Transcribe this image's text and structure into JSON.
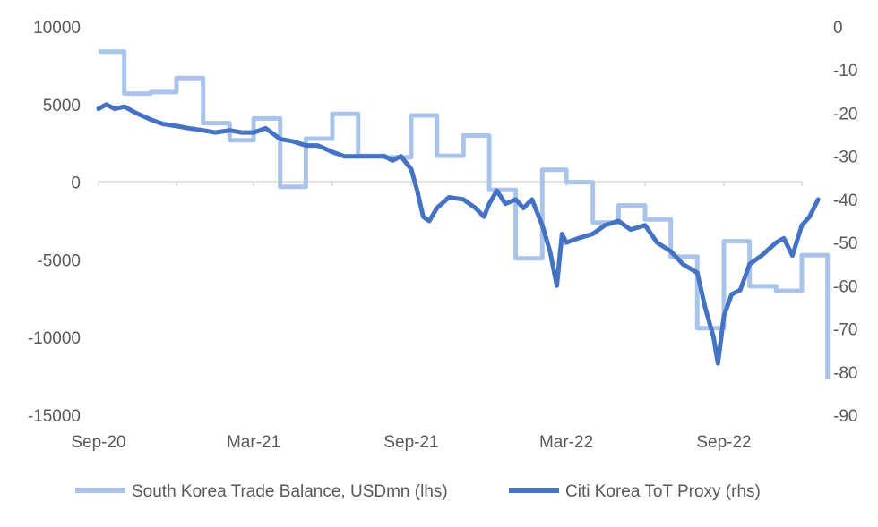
{
  "chart_data": {
    "type": "line",
    "title": "",
    "x_ticks": [
      "Sep-20",
      "Mar-21",
      "Sep-21",
      "Mar-22",
      "Sep-22"
    ],
    "x_range": [
      "2020-09",
      "2022-12"
    ],
    "y_left": {
      "ticks": [
        "10000",
        "5000",
        "0",
        "-5000",
        "-10000",
        "-15000"
      ],
      "range": [
        -15000,
        10000
      ]
    },
    "y_right": {
      "ticks": [
        "0",
        "-10",
        "-20",
        "-30",
        "-40",
        "-50",
        "-60",
        "-70",
        "-80",
        "-90"
      ],
      "range": [
        -90,
        0
      ]
    },
    "grid": false,
    "legend_position": "bottom",
    "colors": {
      "trade_balance": "#A9C4EB",
      "tot_proxy": "#4472C4",
      "axis": "#D9D9D9",
      "text": "#595959"
    },
    "series": [
      {
        "name": "South Korea Trade Balance, USDmn (lhs)",
        "axis": "left",
        "step": true,
        "x": [
          "2020-09",
          "2020-10",
          "2020-11",
          "2020-12",
          "2021-01",
          "2021-02",
          "2021-03",
          "2021-04",
          "2021-05",
          "2021-06",
          "2021-07",
          "2021-08",
          "2021-09",
          "2021-10",
          "2021-11",
          "2021-12",
          "2022-01",
          "2022-02",
          "2022-03",
          "2022-04",
          "2022-05",
          "2022-06",
          "2022-07",
          "2022-08",
          "2022-09",
          "2022-10",
          "2022-11",
          "2022-12"
        ],
        "values": [
          8400,
          5700,
          5800,
          6700,
          3800,
          2700,
          4100,
          -300,
          2800,
          4400,
          1700,
          1600,
          4300,
          1700,
          3000,
          -500,
          -4900,
          800,
          0,
          -2600,
          -1500,
          -2400,
          -4800,
          -9400,
          -3800,
          -6700,
          -7000,
          -4700
        ],
        "end_value": -12700
      },
      {
        "name": "Citi Korea ToT Proxy (rhs)",
        "axis": "right",
        "x": [
          "2020-09-01",
          "2020-09-10",
          "2020-09-20",
          "2020-10-01",
          "2020-10-15",
          "2020-11-01",
          "2020-11-15",
          "2020-12-01",
          "2020-12-15",
          "2021-01-01",
          "2021-01-15",
          "2021-02-01",
          "2021-02-15",
          "2021-03-01",
          "2021-03-15",
          "2021-04-01",
          "2021-04-15",
          "2021-05-01",
          "2021-05-15",
          "2021-06-01",
          "2021-06-15",
          "2021-07-01",
          "2021-07-15",
          "2021-08-01",
          "2021-08-10",
          "2021-08-20",
          "2021-09-01",
          "2021-09-08",
          "2021-09-15",
          "2021-09-22",
          "2021-10-01",
          "2021-10-15",
          "2021-11-01",
          "2021-11-15",
          "2021-11-25",
          "2021-12-01",
          "2021-12-10",
          "2021-12-20",
          "2022-01-01",
          "2022-01-10",
          "2022-01-20",
          "2022-02-01",
          "2022-02-10",
          "2022-02-18",
          "2022-02-24",
          "2022-03-01",
          "2022-03-15",
          "2022-04-01",
          "2022-04-15",
          "2022-05-01",
          "2022-05-15",
          "2022-06-01",
          "2022-06-15",
          "2022-07-01",
          "2022-07-15",
          "2022-08-01",
          "2022-08-10",
          "2022-08-20",
          "2022-08-25",
          "2022-09-01",
          "2022-09-10",
          "2022-09-20",
          "2022-10-01",
          "2022-10-15",
          "2022-11-01",
          "2022-11-10",
          "2022-11-20",
          "2022-12-01",
          "2022-12-10",
          "2022-12-20"
        ],
        "values": [
          -19,
          -18,
          -19,
          -18.5,
          -20,
          -21.5,
          -22.5,
          -23,
          -23.5,
          -24,
          -24.5,
          -24,
          -24.5,
          -24.5,
          -23.5,
          -26,
          -26.5,
          -27.5,
          -27.5,
          -29,
          -30,
          -30,
          -30,
          -30,
          -31,
          -30,
          -33,
          -38,
          -44,
          -45,
          -42,
          -39.5,
          -40,
          -42,
          -44,
          -41,
          -38,
          -41,
          -40,
          -42,
          -40,
          -46,
          -52,
          -60,
          -48,
          -50,
          -49,
          -48,
          -46,
          -45,
          -47,
          -46,
          -50,
          -52,
          -55,
          -57,
          -65,
          -72,
          -78,
          -67,
          -62,
          -61,
          -55,
          -53,
          -50,
          -49,
          -53,
          -46,
          -44,
          -40
        ]
      }
    ]
  }
}
